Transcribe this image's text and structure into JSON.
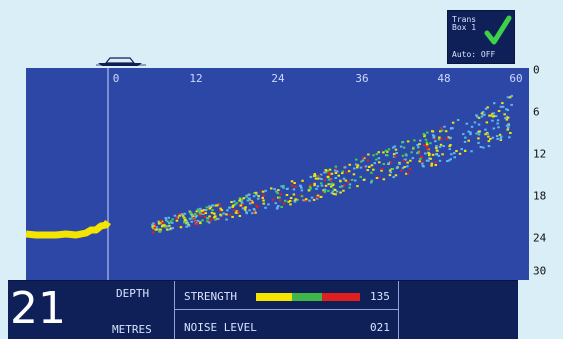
{
  "transducer": {
    "label": "Trans\nBox 1",
    "auto_label": "Auto: OFF",
    "check_color": "#3fd04a"
  },
  "plot": {
    "background": "#2c47a6",
    "x_ticks": [
      "0",
      "12",
      "24",
      "36",
      "48",
      "60"
    ],
    "y_ticks": [
      "0",
      "6",
      "12",
      "18",
      "24",
      "30"
    ]
  },
  "info": {
    "depth_value": "21",
    "depth_label": "DEPTH",
    "unit_label": "METRES",
    "strength_label": "STRENGTH",
    "strength_value": "135",
    "noise_label": "NOISE LEVEL",
    "noise_value": "021",
    "strength_colors": [
      "#f4e400",
      "#3fb54a",
      "#e02020"
    ]
  }
}
